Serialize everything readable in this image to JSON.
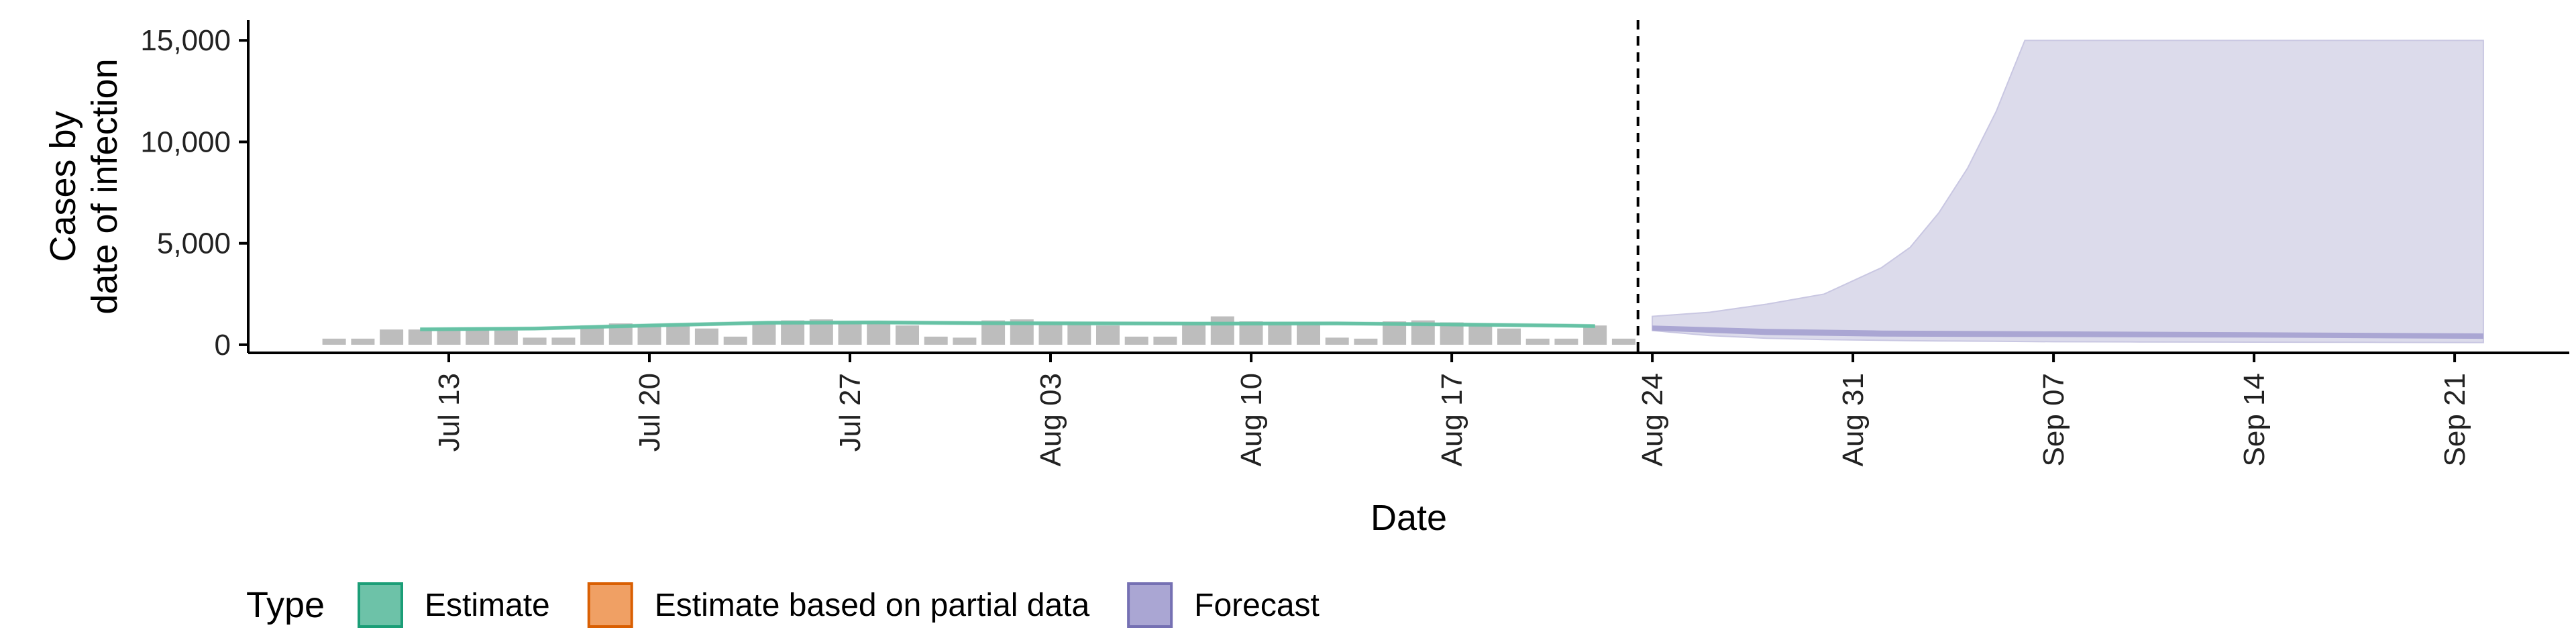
{
  "chart_data": {
    "type": "area",
    "xlabel": "Date",
    "ylabel_lines": [
      "Cases by",
      "date of infection"
    ],
    "ylim": [
      -400,
      16000
    ],
    "x_range": [
      "2021-07-06",
      "2021-09-25"
    ],
    "y_ticks": [
      {
        "value": 0,
        "label": "0"
      },
      {
        "value": 5000,
        "label": "5,000"
      },
      {
        "value": 10000,
        "label": "10,000"
      },
      {
        "value": 15000,
        "label": "15,000"
      }
    ],
    "x_ticks": [
      {
        "date": "2021-07-13",
        "label": "Jul 13"
      },
      {
        "date": "2021-07-20",
        "label": "Jul 20"
      },
      {
        "date": "2021-07-27",
        "label": "Jul 27"
      },
      {
        "date": "2021-08-03",
        "label": "Aug 03"
      },
      {
        "date": "2021-08-10",
        "label": "Aug 10"
      },
      {
        "date": "2021-08-17",
        "label": "Aug 17"
      },
      {
        "date": "2021-08-24",
        "label": "Aug 24"
      },
      {
        "date": "2021-08-31",
        "label": "Aug 31"
      },
      {
        "date": "2021-09-07",
        "label": "Sep 07"
      },
      {
        "date": "2021-09-14",
        "label": "Sep 14"
      },
      {
        "date": "2021-09-21",
        "label": "Sep 21"
      }
    ],
    "forecast_start": "2021-08-23",
    "reported_cases": {
      "dates": [
        "2021-07-09",
        "2021-07-10",
        "2021-07-11",
        "2021-07-12",
        "2021-07-13",
        "2021-07-14",
        "2021-07-15",
        "2021-07-16",
        "2021-07-17",
        "2021-07-18",
        "2021-07-19",
        "2021-07-20",
        "2021-07-21",
        "2021-07-22",
        "2021-07-23",
        "2021-07-24",
        "2021-07-25",
        "2021-07-26",
        "2021-07-27",
        "2021-07-28",
        "2021-07-29",
        "2021-07-30",
        "2021-07-31",
        "2021-08-01",
        "2021-08-02",
        "2021-08-03",
        "2021-08-04",
        "2021-08-05",
        "2021-08-06",
        "2021-08-07",
        "2021-08-08",
        "2021-08-09",
        "2021-08-10",
        "2021-08-11",
        "2021-08-12",
        "2021-08-13",
        "2021-08-14",
        "2021-08-15",
        "2021-08-16",
        "2021-08-17",
        "2021-08-18",
        "2021-08-19",
        "2021-08-20",
        "2021-08-21",
        "2021-08-22",
        "2021-08-23"
      ],
      "values": [
        300,
        300,
        750,
        750,
        750,
        750,
        700,
        350,
        350,
        950,
        1050,
        1000,
        1000,
        800,
        400,
        1100,
        1200,
        1250,
        1150,
        1050,
        950,
        400,
        350,
        1200,
        1250,
        1100,
        1100,
        950,
        400,
        400,
        1000,
        1400,
        1150,
        1100,
        1000,
        350,
        300,
        1150,
        1200,
        1100,
        1000,
        800,
        300,
        300,
        950,
        300
      ]
    },
    "series": [
      {
        "name": "Estimate",
        "color": "#1b9e77",
        "fill": "#66c2a5",
        "x": [
          "2021-07-12",
          "2021-07-16",
          "2021-07-20",
          "2021-07-24",
          "2021-07-28",
          "2021-08-01",
          "2021-08-05",
          "2021-08-09",
          "2021-08-13",
          "2021-08-17",
          "2021-08-21",
          "2021-08-22"
        ],
        "median": [
          760,
          800,
          950,
          1080,
          1100,
          1060,
          1050,
          1040,
          1050,
          1000,
          940,
          920
        ],
        "lower": [
          660,
          700,
          850,
          980,
          1000,
          960,
          950,
          940,
          950,
          900,
          840,
          820
        ],
        "upper": [
          860,
          900,
          1050,
          1180,
          1200,
          1160,
          1150,
          1140,
          1150,
          1100,
          1040,
          1020
        ]
      },
      {
        "name": "Forecast",
        "color": "#7570b3",
        "outer_band": {
          "fill": "#dcdbeb",
          "x": [
            "2021-08-24",
            "2021-08-26",
            "2021-08-28",
            "2021-08-30",
            "2021-09-01",
            "2021-09-02",
            "2021-09-03",
            "2021-09-04",
            "2021-09-05",
            "2021-09-06",
            "2021-09-07",
            "2021-09-10",
            "2021-09-14",
            "2021-09-18",
            "2021-09-22"
          ],
          "upper": [
            1400,
            1600,
            2000,
            2500,
            3800,
            4800,
            6500,
            8700,
            11500,
            15000,
            15000,
            15000,
            15000,
            15000,
            15000
          ],
          "lower": [
            700,
            450,
            320,
            250,
            220,
            200,
            190,
            180,
            170,
            160,
            150,
            140,
            130,
            120,
            110
          ]
        },
        "inner_band": {
          "fill": "#aaa6d3",
          "x": [
            "2021-08-24",
            "2021-08-28",
            "2021-09-01",
            "2021-09-07",
            "2021-09-14",
            "2021-09-22"
          ],
          "upper": [
            950,
            780,
            700,
            660,
            620,
            560
          ],
          "lower": [
            700,
            480,
            400,
            380,
            350,
            290
          ]
        }
      }
    ],
    "legend": {
      "title": "Type",
      "placement": "bottom-left",
      "items": [
        {
          "label": "Estimate",
          "fill": "#6dc2a8",
          "stroke": "#1b9e77"
        },
        {
          "label": "Estimate based on partial data",
          "fill": "#f0a064",
          "stroke": "#d95f02"
        },
        {
          "label": "Forecast",
          "fill": "#aaa6d3",
          "stroke": "#7570b3"
        }
      ]
    },
    "colors": {
      "reported_bar": "#bdbdbd",
      "axis": "#000000",
      "forecast_divider": "#000000"
    }
  }
}
